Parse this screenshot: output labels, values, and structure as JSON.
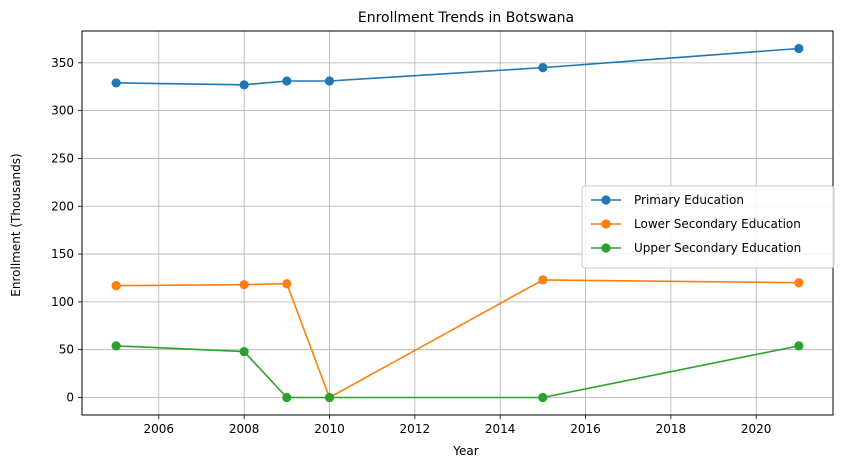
{
  "chart_data": {
    "type": "line",
    "title": "Enrollment Trends in Botswana",
    "xlabel": "Year",
    "ylabel": "Enrollment (Thousands)",
    "x": [
      2005,
      2008,
      2009,
      2010,
      2015,
      2021
    ],
    "xlim": [
      2004.2,
      2021.8
    ],
    "ylim": [
      -18.3,
      383.3
    ],
    "xticks": [
      2006,
      2008,
      2010,
      2012,
      2014,
      2016,
      2018,
      2020
    ],
    "yticks": [
      0,
      50,
      100,
      150,
      200,
      250,
      300,
      350
    ],
    "grid": true,
    "legend_position": "center-right",
    "series": [
      {
        "name": "Primary Education",
        "color": "#1f77b4",
        "values": [
          329,
          327,
          331,
          331,
          345,
          365
        ]
      },
      {
        "name": "Lower Secondary Education",
        "color": "#ff7f0e",
        "values": [
          117,
          118,
          119,
          0,
          123,
          120
        ]
      },
      {
        "name": "Upper Secondary Education",
        "color": "#2ca02c",
        "values": [
          54,
          48,
          0,
          0,
          0,
          54
        ]
      }
    ]
  }
}
